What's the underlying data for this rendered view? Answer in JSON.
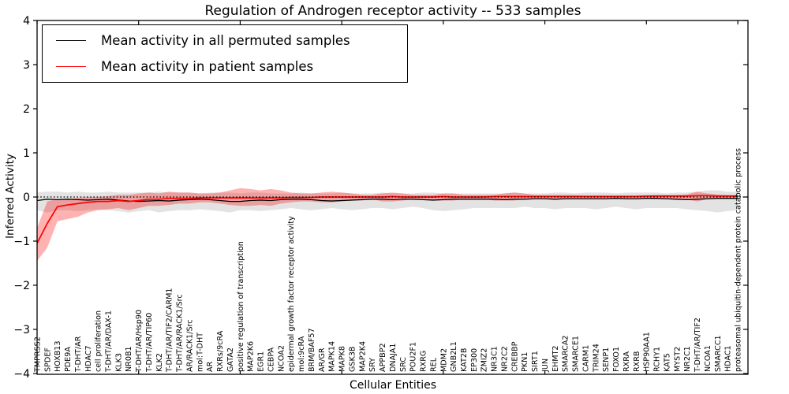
{
  "figure": {
    "title": "Regulation of Androgen receptor activity -- 533 samples",
    "xlabel": "Cellular Entities",
    "ylabel": "Inferred Activity"
  },
  "legend": {
    "items": [
      {
        "label": "Mean activity in all permuted samples",
        "color": "#000000"
      },
      {
        "label": "Mean activity in patient samples",
        "color": "#ff0000"
      }
    ]
  },
  "chart_data": {
    "type": "line",
    "title": "Regulation of Androgen receptor activity -- 533 samples",
    "xlabel": "Cellular Entities",
    "ylabel": "Inferred Activity",
    "ylim": [
      -4,
      4
    ],
    "yticks": [
      -4,
      -3,
      -2,
      -1,
      0,
      1,
      2,
      3,
      4
    ],
    "grid": false,
    "zero_line": "black dotted at y=0",
    "legend_position": "upper left",
    "band_note": "shaded bands show spread around each mean line",
    "categories": [
      "TMPRSS2",
      "SPDEF",
      "HOXB13",
      "PDE9A",
      "T-DHT/AR",
      "HDAC7",
      "cell proliferation",
      "T-DHT/AR/DAX-1",
      "KLK3",
      "NR0B1",
      "T-DHT/AR/Hsp90",
      "T-DHT/AR/TIP60",
      "KLK2",
      "T-DHT/AR/TIF2/CARM1",
      "T-DHT/AR/RACK1/Src",
      "AR/RACK1/Src",
      "mol:T-DHT",
      "AR",
      "RXRs/9cRA",
      "GATA2",
      "positive regulation of transcription",
      "MAP2K6",
      "EGR1",
      "CEBPA",
      "NCOA2",
      "epidermal growth factor receptor activity",
      "mol:9cRA",
      "BRM/BAF57",
      "AR/GR",
      "MAPK14",
      "MAPK8",
      "GSK3B",
      "MAP2K4",
      "SRY",
      "APPBP2",
      "DNAJA1",
      "SRC",
      "POU2F1",
      "RXRG",
      "REL",
      "MDM2",
      "GNB2L1",
      "KAT2B",
      "EP300",
      "ZMIZ2",
      "NR3C1",
      "NR2C2",
      "CREBBP",
      "PKN1",
      "SIRT1",
      "JUN",
      "EHMT2",
      "SMARCA2",
      "SMARCE1",
      "CARM1",
      "TRIM24",
      "SENP1",
      "FOXO1",
      "RXRA",
      "RXRB",
      "HSP90AA1",
      "RCHY1",
      "KAT5",
      "MYST2",
      "NR2C1",
      "T-DHT/AR/TIF2",
      "NCOA1",
      "SMARCC1",
      "HDAC1",
      "proteasomal ubiquitin-dependent protein catabolic process"
    ],
    "series": [
      {
        "name": "Mean activity in all permuted samples",
        "color": "#000000",
        "band_color": "#999999",
        "values": [
          -0.08,
          -0.05,
          -0.06,
          -0.05,
          -0.06,
          -0.07,
          -0.06,
          -0.05,
          -0.07,
          -0.09,
          -0.1,
          -0.09,
          -0.08,
          -0.09,
          -0.07,
          -0.06,
          -0.05,
          -0.06,
          -0.08,
          -0.1,
          -0.1,
          -0.08,
          -0.07,
          -0.08,
          -0.06,
          -0.05,
          -0.05,
          -0.06,
          -0.08,
          -0.09,
          -0.08,
          -0.07,
          -0.06,
          -0.05,
          -0.05,
          -0.06,
          -0.05,
          -0.05,
          -0.06,
          -0.07,
          -0.06,
          -0.05,
          -0.05,
          -0.05,
          -0.05,
          -0.05,
          -0.06,
          -0.05,
          -0.05,
          -0.04,
          -0.04,
          -0.05,
          -0.04,
          -0.04,
          -0.04,
          -0.04,
          -0.04,
          -0.03,
          -0.04,
          -0.04,
          -0.03,
          -0.03,
          -0.04,
          -0.05,
          -0.06,
          -0.05,
          -0.04,
          -0.03,
          -0.03,
          -0.03
        ],
        "band_upper": [
          0.1,
          0.12,
          0.12,
          0.1,
          0.12,
          0.1,
          0.1,
          0.12,
          0.1,
          0.1,
          0.1,
          0.1,
          0.12,
          0.1,
          0.1,
          0.1,
          0.08,
          0.1,
          0.1,
          0.1,
          0.08,
          0.1,
          0.1,
          0.08,
          0.08,
          0.08,
          0.1,
          0.08,
          0.08,
          0.08,
          0.1,
          0.08,
          0.08,
          0.08,
          0.1,
          0.08,
          0.08,
          0.08,
          0.1,
          0.1,
          0.08,
          0.08,
          0.08,
          0.08,
          0.08,
          0.08,
          0.08,
          0.1,
          0.08,
          0.08,
          0.08,
          0.1,
          0.1,
          0.08,
          0.1,
          0.1,
          0.1,
          0.08,
          0.1,
          0.1,
          0.1,
          0.1,
          0.08,
          0.1,
          0.1,
          0.12,
          0.15,
          0.15,
          0.12,
          0.12
        ],
        "band_lower": [
          -0.3,
          -0.35,
          -0.3,
          -0.3,
          -0.32,
          -0.3,
          -0.28,
          -0.3,
          -0.32,
          -0.35,
          -0.32,
          -0.3,
          -0.35,
          -0.32,
          -0.3,
          -0.3,
          -0.28,
          -0.3,
          -0.32,
          -0.35,
          -0.3,
          -0.3,
          -0.32,
          -0.3,
          -0.28,
          -0.25,
          -0.28,
          -0.3,
          -0.28,
          -0.25,
          -0.28,
          -0.3,
          -0.28,
          -0.25,
          -0.25,
          -0.28,
          -0.25,
          -0.22,
          -0.25,
          -0.3,
          -0.32,
          -0.3,
          -0.28,
          -0.25,
          -0.25,
          -0.25,
          -0.25,
          -0.25,
          -0.22,
          -0.25,
          -0.25,
          -0.28,
          -0.25,
          -0.25,
          -0.25,
          -0.28,
          -0.25,
          -0.22,
          -0.25,
          -0.28,
          -0.25,
          -0.25,
          -0.25,
          -0.25,
          -0.28,
          -0.3,
          -0.32,
          -0.35,
          -0.32,
          -0.3
        ]
      },
      {
        "name": "Mean activity in patient samples",
        "color": "#ff0000",
        "band_color": "#ff0000",
        "values": [
          -1.05,
          -0.6,
          -0.22,
          -0.18,
          -0.15,
          -0.12,
          -0.1,
          -0.1,
          -0.08,
          -0.1,
          -0.08,
          -0.05,
          -0.05,
          -0.03,
          -0.03,
          -0.03,
          -0.02,
          -0.02,
          -0.02,
          -0.02,
          -0.02,
          -0.02,
          -0.02,
          -0.02,
          -0.02,
          -0.01,
          -0.01,
          -0.01,
          0.0,
          0.0,
          0.0,
          0.0,
          0.0,
          0.0,
          0.0,
          0.01,
          0.0,
          0.0,
          0.0,
          0.0,
          0.01,
          0.0,
          0.0,
          0.0,
          0.0,
          0.01,
          0.01,
          0.01,
          0.01,
          0.01,
          0.01,
          0.01,
          0.01,
          0.01,
          0.01,
          0.01,
          0.01,
          0.01,
          0.01,
          0.01,
          0.02,
          0.02,
          0.02,
          0.02,
          0.02,
          0.03,
          0.03,
          0.02,
          0.02,
          0.02
        ],
        "band_upper": [
          -0.7,
          -0.1,
          -0.05,
          -0.05,
          -0.02,
          0.0,
          0.0,
          0.02,
          0.05,
          0.05,
          0.08,
          0.1,
          0.08,
          0.12,
          0.1,
          0.1,
          0.08,
          0.08,
          0.1,
          0.15,
          0.2,
          0.18,
          0.15,
          0.18,
          0.15,
          0.1,
          0.08,
          0.08,
          0.1,
          0.12,
          0.1,
          0.08,
          0.05,
          0.05,
          0.08,
          0.1,
          0.08,
          0.05,
          0.05,
          0.05,
          0.08,
          0.08,
          0.05,
          0.05,
          0.05,
          0.05,
          0.08,
          0.1,
          0.08,
          0.05,
          0.05,
          0.05,
          0.05,
          0.05,
          0.04,
          0.04,
          0.04,
          0.04,
          0.04,
          0.04,
          0.04,
          0.05,
          0.05,
          0.05,
          0.06,
          0.12,
          0.08,
          0.06,
          0.05,
          0.05
        ],
        "band_lower": [
          -1.45,
          -1.15,
          -0.55,
          -0.5,
          -0.45,
          -0.35,
          -0.3,
          -0.28,
          -0.25,
          -0.3,
          -0.25,
          -0.2,
          -0.2,
          -0.18,
          -0.15,
          -0.15,
          -0.12,
          -0.12,
          -0.15,
          -0.18,
          -0.2,
          -0.2,
          -0.18,
          -0.2,
          -0.15,
          -0.12,
          -0.1,
          -0.1,
          -0.12,
          -0.12,
          -0.1,
          -0.08,
          -0.08,
          -0.05,
          -0.1,
          -0.1,
          -0.08,
          -0.05,
          -0.05,
          -0.08,
          -0.08,
          -0.08,
          -0.05,
          -0.05,
          -0.05,
          -0.08,
          -0.08,
          -0.08,
          -0.05,
          -0.05,
          -0.05,
          -0.05,
          -0.05,
          -0.05,
          -0.04,
          -0.04,
          -0.04,
          -0.04,
          -0.04,
          -0.04,
          -0.04,
          -0.05,
          -0.05,
          -0.05,
          -0.06,
          -0.1,
          -0.05,
          -0.03,
          -0.02,
          -0.02
        ]
      }
    ]
  }
}
